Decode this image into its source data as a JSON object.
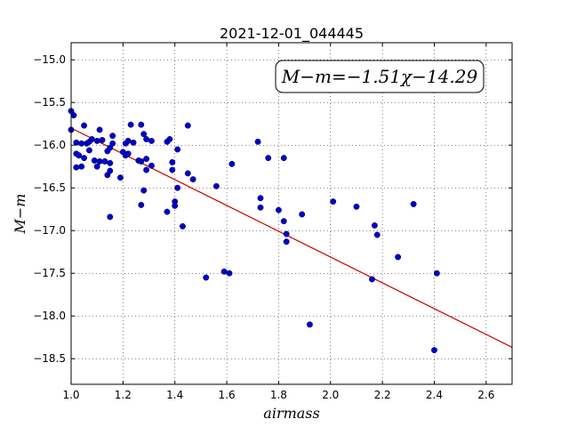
{
  "chart_data": {
    "type": "scatter",
    "title": "2021-12-01_044445",
    "xlabel": "airmass",
    "ylabel": "M−m",
    "xlim": [
      1.0,
      2.7
    ],
    "ylim": [
      -18.8,
      -14.8
    ],
    "xticks": [
      1.0,
      1.2,
      1.4,
      1.6,
      1.8,
      2.0,
      2.2,
      2.4,
      2.6
    ],
    "yticks": [
      -15.0,
      -15.5,
      -16.0,
      -16.5,
      -17.0,
      -17.5,
      -18.0,
      -18.5
    ],
    "xtick_labels": [
      "1.0",
      "1.2",
      "1.4",
      "1.6",
      "1.8",
      "2.0",
      "2.2",
      "2.4",
      "2.6"
    ],
    "ytick_labels": [
      "−15.0",
      "−15.5",
      "−16.0",
      "−16.5",
      "−17.0",
      "−17.5",
      "−18.0",
      "−18.5"
    ],
    "grid": true,
    "annotation": "M−m=−1.51χ−14.29",
    "point_color": "#0000cc",
    "fit_color": "#cc0000",
    "fit": {
      "slope": -1.51,
      "intercept": -14.29
    },
    "points": [
      [
        1.0,
        -15.6
      ],
      [
        1.0,
        -15.82
      ],
      [
        1.01,
        -15.65
      ],
      [
        1.02,
        -15.97
      ],
      [
        1.02,
        -16.1
      ],
      [
        1.02,
        -16.26
      ],
      [
        1.03,
        -16.12
      ],
      [
        1.04,
        -15.98
      ],
      [
        1.04,
        -16.25
      ],
      [
        1.05,
        -15.77
      ],
      [
        1.05,
        -16.15
      ],
      [
        1.06,
        -15.98
      ],
      [
        1.07,
        -15.96
      ],
      [
        1.07,
        -16.06
      ],
      [
        1.08,
        -15.93
      ],
      [
        1.09,
        -16.18
      ],
      [
        1.1,
        -15.95
      ],
      [
        1.1,
        -16.25
      ],
      [
        1.11,
        -15.82
      ],
      [
        1.11,
        -16.19
      ],
      [
        1.12,
        -15.94
      ],
      [
        1.13,
        -16.19
      ],
      [
        1.14,
        -16.07
      ],
      [
        1.14,
        -16.35
      ],
      [
        1.15,
        -16.03
      ],
      [
        1.15,
        -16.21
      ],
      [
        1.15,
        -16.3
      ],
      [
        1.15,
        -16.84
      ],
      [
        1.16,
        -15.89
      ],
      [
        1.16,
        -15.98
      ],
      [
        1.19,
        -16.38
      ],
      [
        1.2,
        -16.08
      ],
      [
        1.21,
        -15.98
      ],
      [
        1.21,
        -16.12
      ],
      [
        1.22,
        -15.95
      ],
      [
        1.22,
        -16.1
      ],
      [
        1.23,
        -15.76
      ],
      [
        1.24,
        -15.97
      ],
      [
        1.26,
        -16.18
      ],
      [
        1.27,
        -15.76
      ],
      [
        1.27,
        -16.19
      ],
      [
        1.27,
        -16.7
      ],
      [
        1.28,
        -15.87
      ],
      [
        1.28,
        -16.53
      ],
      [
        1.29,
        -15.93
      ],
      [
        1.29,
        -16.16
      ],
      [
        1.29,
        -16.29
      ],
      [
        1.31,
        -15.95
      ],
      [
        1.31,
        -16.24
      ],
      [
        1.37,
        -15.96
      ],
      [
        1.37,
        -16.78
      ],
      [
        1.38,
        -15.93
      ],
      [
        1.39,
        -16.2
      ],
      [
        1.39,
        -16.29
      ],
      [
        1.4,
        -16.71
      ],
      [
        1.4,
        -16.66
      ],
      [
        1.41,
        -16.05
      ],
      [
        1.41,
        -16.5
      ],
      [
        1.43,
        -16.95
      ],
      [
        1.45,
        -15.77
      ],
      [
        1.45,
        -16.33
      ],
      [
        1.47,
        -16.4
      ],
      [
        1.52,
        -17.55
      ],
      [
        1.56,
        -16.48
      ],
      [
        1.59,
        -17.48
      ],
      [
        1.61,
        -17.5
      ],
      [
        1.62,
        -16.22
      ],
      [
        1.72,
        -15.96
      ],
      [
        1.73,
        -16.62
      ],
      [
        1.73,
        -16.73
      ],
      [
        1.76,
        -16.15
      ],
      [
        1.8,
        -16.76
      ],
      [
        1.82,
        -16.89
      ],
      [
        1.82,
        -16.15
      ],
      [
        1.83,
        -17.04
      ],
      [
        1.83,
        -17.13
      ],
      [
        1.89,
        -16.81
      ],
      [
        1.92,
        -18.1
      ],
      [
        2.01,
        -16.66
      ],
      [
        2.1,
        -16.72
      ],
      [
        2.16,
        -17.57
      ],
      [
        2.17,
        -16.94
      ],
      [
        2.18,
        -17.05
      ],
      [
        2.26,
        -17.31
      ],
      [
        2.32,
        -16.69
      ],
      [
        2.4,
        -18.4
      ],
      [
        2.41,
        -17.5
      ]
    ]
  }
}
